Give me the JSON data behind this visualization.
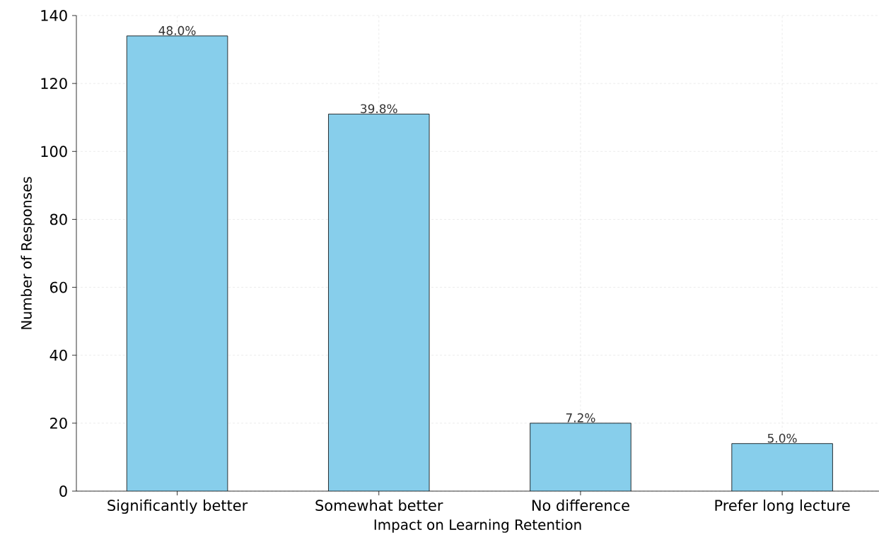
{
  "chart_data": {
    "type": "bar",
    "xlabel": "Impact on Learning Retention",
    "ylabel": "Number of Responses",
    "categories": [
      "Significantly better",
      "Somewhat better",
      "No difference",
      "Prefer long lecture"
    ],
    "values": [
      134,
      111,
      20,
      14
    ],
    "annotations": [
      {
        "text": "48.0%",
        "x": "Significantly better",
        "y": 134
      },
      {
        "text": "39.8%",
        "x": "Somewhat better",
        "y": 111
      },
      {
        "text": "7.2%",
        "x": "No difference",
        "y": 20
      },
      {
        "text": "5.0%",
        "x": "Prefer long lecture",
        "y": 14
      }
    ],
    "color": "#87ceeb",
    "ylim": [
      0,
      140
    ],
    "yticks": [
      0,
      20,
      40,
      60,
      80,
      100,
      120,
      140
    ],
    "grid": true
  }
}
